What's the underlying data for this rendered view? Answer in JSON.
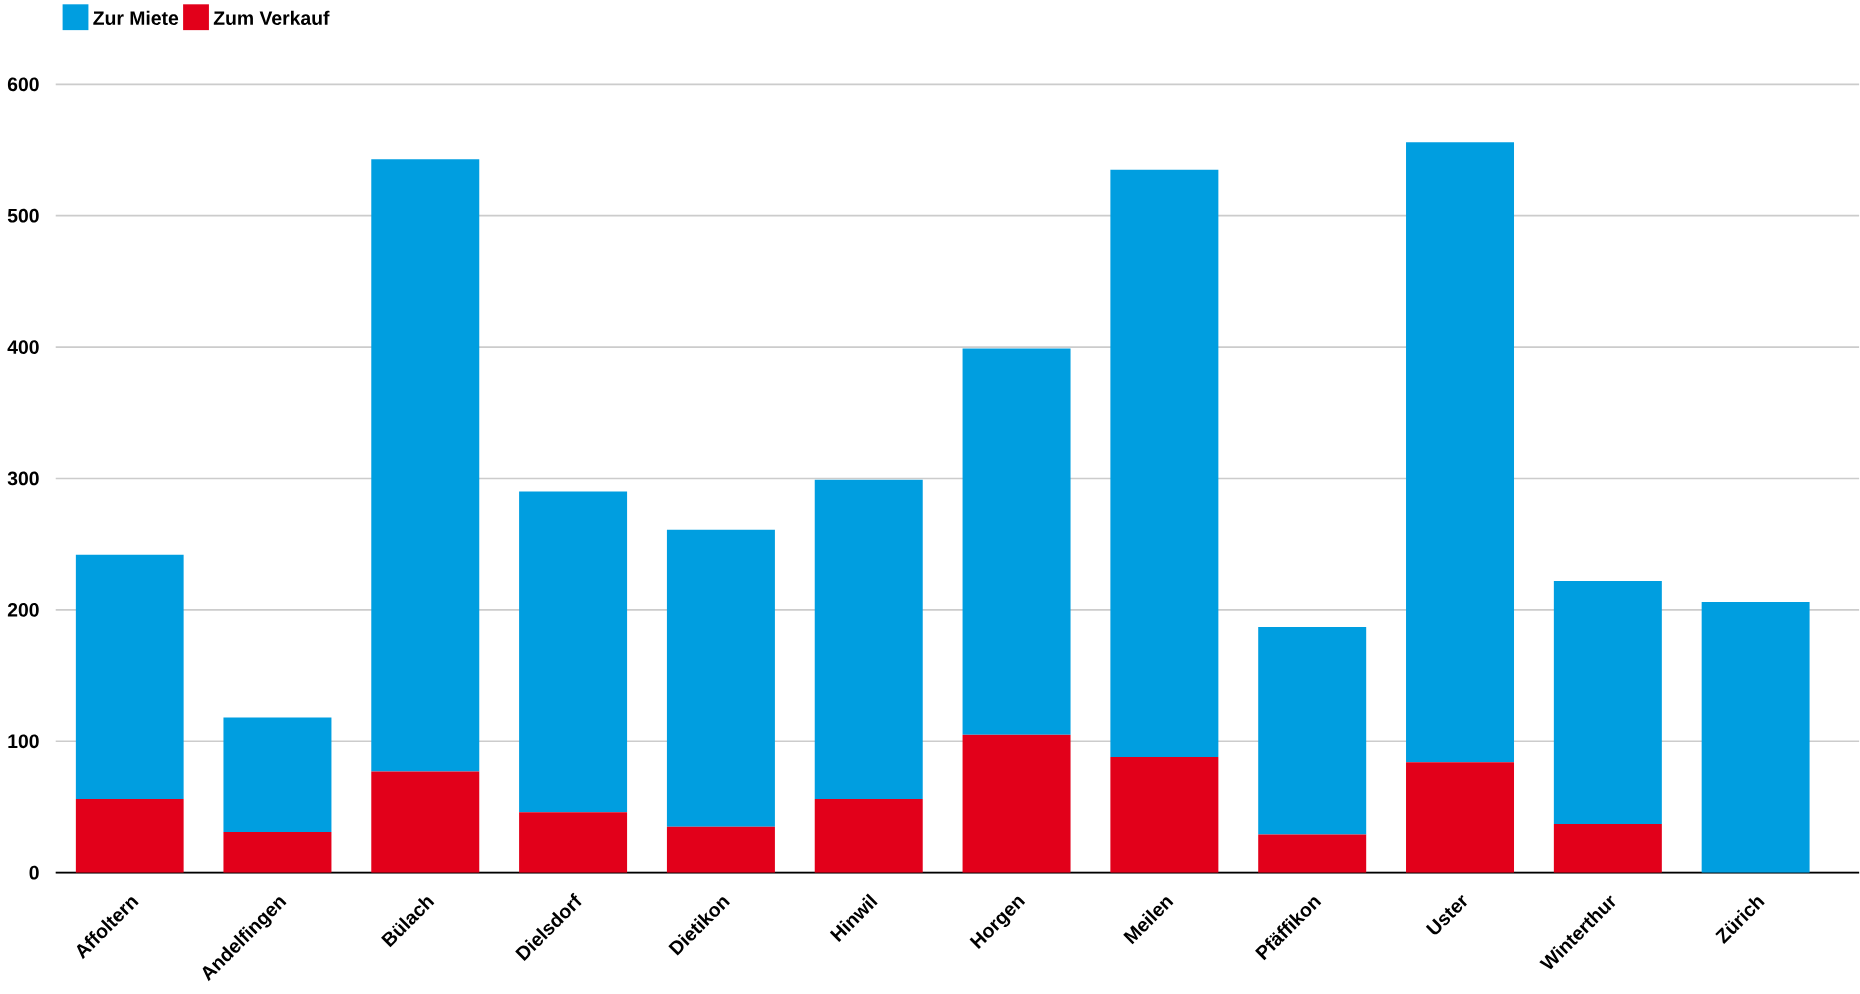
{
  "chart_data": {
    "type": "bar",
    "stacked": true,
    "categories": [
      "Affoltern",
      "Andelfingen",
      "Bülach",
      "Dielsdorf",
      "Dietikon",
      "Hinwil",
      "Horgen",
      "Meilen",
      "Pfäffikon",
      "Uster",
      "Winterthur",
      "Zürich"
    ],
    "series": [
      {
        "name": "Zum Verkauf",
        "color": "#e2001a",
        "values": [
          56,
          31,
          77,
          46,
          35,
          56,
          105,
          88,
          29,
          84,
          37,
          0
        ]
      },
      {
        "name": "Zur Miete",
        "color": "#009ee0",
        "values": [
          186,
          87,
          466,
          244,
          226,
          243,
          294,
          447,
          158,
          472,
          185,
          206
        ]
      }
    ],
    "ylim": [
      0,
      600
    ],
    "yticks": [
      0,
      100,
      200,
      300,
      400,
      500,
      600
    ],
    "grid": "y",
    "legend": "top left"
  }
}
